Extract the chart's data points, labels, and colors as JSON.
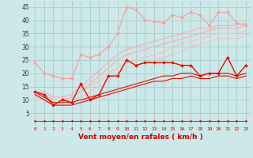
{
  "x": [
    0,
    1,
    2,
    3,
    4,
    5,
    6,
    7,
    8,
    9,
    10,
    11,
    12,
    13,
    14,
    15,
    16,
    17,
    18,
    19,
    20,
    21,
    22,
    23
  ],
  "background_color": "#cce8e8",
  "grid_color": "#aacccc",
  "xlabel": "Vent moyen/en rafales ( km/h )",
  "ylim": [
    0,
    47
  ],
  "xlim": [
    -0.5,
    23.5
  ],
  "yticks": [
    5,
    10,
    15,
    20,
    25,
    30,
    35,
    40,
    45
  ],
  "series": [
    {
      "color": "#ff9999",
      "lw": 0.8,
      "marker": "D",
      "ms": 2.0,
      "data": [
        24,
        20,
        19,
        18,
        18,
        27,
        26,
        27,
        30,
        35,
        45,
        44,
        40,
        39.5,
        39,
        42,
        41,
        43,
        42,
        38,
        43,
        43,
        39,
        38
      ]
    },
    {
      "color": "#ffaaaa",
      "lw": 0.8,
      "marker": null,
      "ms": 0,
      "data": [
        13,
        13,
        11,
        11,
        12,
        15,
        18,
        21,
        24,
        27,
        29,
        30,
        31,
        32,
        33,
        34,
        35,
        36,
        37,
        37,
        38,
        38,
        38,
        39
      ]
    },
    {
      "color": "#ffaaaa",
      "lw": 0.8,
      "marker": null,
      "ms": 0,
      "data": [
        12,
        12,
        10,
        10,
        11,
        13,
        16,
        19,
        22,
        25,
        27,
        28,
        29,
        30,
        31,
        32,
        33,
        34,
        35,
        36,
        37,
        37,
        37,
        38
      ]
    },
    {
      "color": "#ffbbbb",
      "lw": 0.8,
      "marker": null,
      "ms": 0,
      "data": [
        11,
        11,
        10,
        10,
        11,
        13,
        15,
        17,
        20,
        22,
        24,
        25,
        26,
        27,
        28,
        30,
        31,
        32,
        33,
        34,
        35,
        35,
        35,
        36
      ]
    },
    {
      "color": "#ffbbbb",
      "lw": 0.8,
      "marker": null,
      "ms": 0,
      "data": [
        10,
        10,
        9,
        9,
        10,
        11,
        13,
        15,
        17,
        20,
        22,
        23,
        24,
        25,
        26,
        27,
        28,
        30,
        31,
        32,
        33,
        33,
        33,
        34
      ]
    },
    {
      "color": "#dd1100",
      "lw": 1.0,
      "marker": "D",
      "ms": 2.0,
      "data": [
        13,
        12,
        8,
        10,
        9,
        16,
        10,
        12,
        19,
        19,
        25,
        23,
        24,
        24,
        24,
        24,
        23,
        23,
        19,
        20,
        20,
        26,
        19,
        23
      ]
    },
    {
      "color": "#dd1100",
      "lw": 0.8,
      "marker": null,
      "ms": 0,
      "data": [
        13,
        11,
        9,
        9,
        9,
        10,
        11,
        12,
        13,
        14,
        15,
        16,
        17,
        18,
        19,
        19,
        20,
        20,
        19,
        20,
        20,
        20,
        19,
        20
      ]
    },
    {
      "color": "#dd1100",
      "lw": 0.8,
      "marker": null,
      "ms": 0,
      "data": [
        12,
        10,
        8,
        8,
        8,
        9,
        10,
        11,
        12,
        13,
        14,
        15,
        16,
        17,
        17,
        18,
        18,
        19,
        18,
        18,
        19,
        19,
        18,
        19
      ]
    },
    {
      "color": "#dd1100",
      "lw": 0.7,
      "marker": null,
      "ms": 0,
      "data": [
        2,
        2,
        2,
        2,
        2,
        2,
        2,
        2,
        2,
        2,
        2,
        2,
        2,
        2,
        2,
        2,
        2,
        2,
        2,
        2,
        2,
        2,
        2,
        2
      ]
    },
    {
      "color": "#dd1100",
      "lw": 0.7,
      "marker": "D",
      "ms": 1.5,
      "data": [
        2,
        2,
        2,
        2,
        2,
        2,
        2,
        2,
        2,
        2,
        2,
        2,
        2,
        2,
        2,
        2,
        2,
        2,
        2,
        2,
        2,
        2,
        2,
        2
      ]
    }
  ]
}
